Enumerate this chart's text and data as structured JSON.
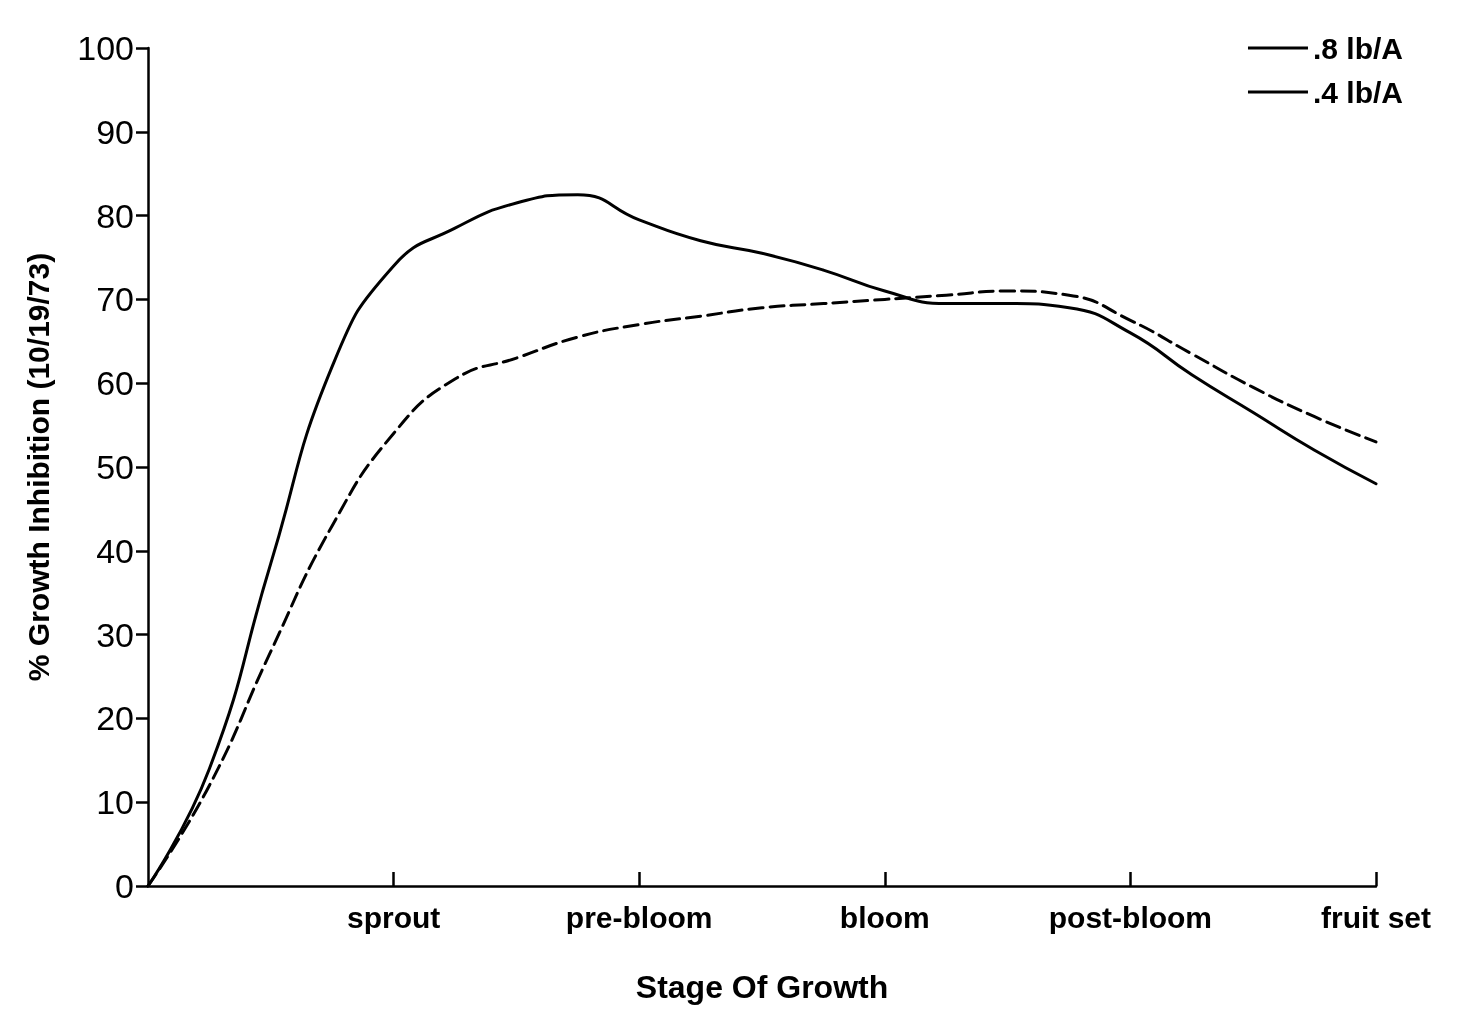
{
  "chart_data": {
    "type": "line",
    "xlabel": "Stage Of Growth",
    "ylabel": "% Growth Inhibition (10/19/73)",
    "categories": [
      null,
      null,
      null,
      null,
      "sprout",
      null,
      null,
      null,
      "pre-bloom",
      null,
      null,
      null,
      "bloom",
      null,
      null,
      null,
      "post-bloom",
      null,
      null,
      null,
      "fruit set"
    ],
    "ylim": [
      0,
      100
    ],
    "yticks": [
      0,
      10,
      20,
      30,
      40,
      50,
      60,
      70,
      80,
      90,
      100
    ],
    "grid": false,
    "legend": "top right",
    "marker": "none",
    "series": [
      {
        "name": ".8 lb/A",
        "color": "#000000",
        "line_style": "solid",
        "values": [
          0,
          14,
          38.5,
          62,
          74,
          78.5,
          81.5,
          82.5,
          79.5,
          77,
          75.5,
          73.5,
          71,
          69.5,
          69.5,
          69,
          66,
          61,
          56.5,
          52,
          48
        ]
      },
      {
        "name": ".4 lb/A",
        "color": "#000000",
        "line_style": "dashed",
        "values": [
          0,
          12,
          28,
          43,
          54,
          60.5,
          63,
          65.5,
          67,
          68,
          69,
          69.5,
          70,
          70.5,
          71,
          70.5,
          67.5,
          63.5,
          59.5,
          56,
          53
        ]
      }
    ]
  }
}
